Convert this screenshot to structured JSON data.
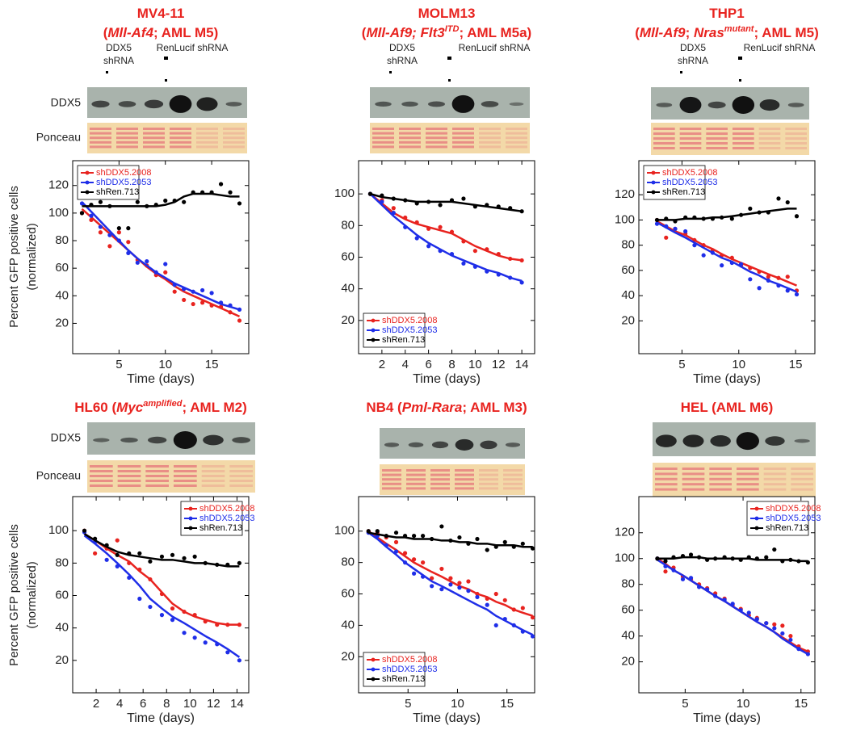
{
  "y_axis_label": [
    "Percent GFP positive cells",
    "(normalized)"
  ],
  "blot_labels": {
    "protein": "DDX5",
    "loading": "Ponceau",
    "lane_ddx5": [
      "DDX5",
      "shRNA"
    ],
    "lane_ren": "RenLucif shRNA"
  },
  "chart_data": [
    {
      "type": "scatter",
      "title": [
        [
          {
            "text": "MV4-11"
          }
        ],
        [
          {
            "text": "("
          },
          {
            "text": "Mll-Af4",
            "italic": true
          },
          {
            "text": "; AML M5)"
          }
        ]
      ],
      "xlabel": "Time (days)",
      "xlim": [
        0,
        19
      ],
      "xticks": [
        5,
        10,
        15
      ],
      "ylim": [
        -2,
        138
      ],
      "yticks": [
        20,
        40,
        60,
        80,
        100,
        120
      ],
      "legend": "upper left",
      "x": [
        1,
        2,
        3,
        4,
        5,
        6,
        7,
        8,
        9,
        10,
        11,
        12,
        13,
        14,
        15,
        16,
        17,
        18
      ],
      "series": [
        {
          "name": "shDDX5.2008",
          "color": "#e8231f",
          "values": [
            100,
            95,
            86,
            76,
            86,
            79,
            66,
            62,
            55,
            57,
            43,
            37,
            34,
            35,
            33,
            32,
            28,
            22
          ],
          "fit": [
            103,
            97,
            91,
            85,
            79,
            73,
            67,
            61,
            56,
            52,
            47,
            43,
            40,
            37,
            34,
            31,
            28,
            25
          ]
        },
        {
          "name": "shDDX5.2053",
          "color": "#1f2ee8",
          "values": [
            107,
            98,
            90,
            84,
            80,
            71,
            64,
            65,
            57,
            63,
            48,
            45,
            43,
            44,
            42,
            35,
            33,
            30
          ],
          "fit": [
            108,
            101,
            94,
            87,
            80,
            73,
            67,
            62,
            57,
            53,
            49,
            46,
            43,
            40,
            37,
            34,
            32,
            30
          ]
        },
        {
          "name": "shRen.713",
          "color": "#000000",
          "values": [
            100,
            106,
            108,
            105,
            89,
            89,
            108,
            105,
            106,
            109,
            109,
            108,
            115,
            115,
            115,
            121,
            115,
            107
          ],
          "fit": [
            105,
            105,
            105,
            105,
            105,
            105,
            105,
            105,
            105,
            106,
            108,
            112,
            114,
            114,
            114,
            113,
            112,
            112
          ]
        }
      ]
    },
    {
      "type": "scatter",
      "title": [
        [
          {
            "text": "MOLM13"
          }
        ],
        [
          {
            "text": "("
          },
          {
            "text": "Mll-Af9; Flt3",
            "italic": true
          },
          {
            "text": "ITD",
            "italic": true,
            "sup": true
          },
          {
            "text": "; AML M5a)"
          }
        ]
      ],
      "xlabel": "Time (days)",
      "xlim": [
        0,
        15.1
      ],
      "xticks": [
        2,
        4,
        6,
        8,
        10,
        12,
        14
      ],
      "ylim": [
        -1,
        121
      ],
      "yticks": [
        20,
        40,
        60,
        80,
        100
      ],
      "legend": "lower left",
      "x": [
        1,
        2,
        3,
        4,
        5,
        6,
        7,
        8,
        9,
        10,
        11,
        12,
        13,
        14
      ],
      "series": [
        {
          "name": "shDDX5.2008",
          "color": "#e8231f",
          "values": [
            100,
            96,
            91,
            85,
            82,
            78,
            79,
            76,
            70,
            64,
            65,
            62,
            59,
            58
          ],
          "fit": [
            100,
            94,
            88,
            84,
            81,
            79,
            77,
            75,
            71,
            67,
            64,
            61,
            59,
            58
          ]
        },
        {
          "name": "shDDX5.2053",
          "color": "#1f2ee8",
          "values": [
            100,
            95,
            88,
            79,
            72,
            67,
            64,
            62,
            56,
            54,
            51,
            49,
            47,
            44
          ],
          "fit": [
            100,
            93,
            86,
            80,
            74,
            69,
            65,
            61,
            58,
            55,
            52,
            50,
            47,
            45
          ]
        },
        {
          "name": "shRen.713",
          "color": "#000000",
          "values": [
            100,
            99,
            97,
            96,
            94,
            95,
            93,
            96,
            97,
            92,
            93,
            92,
            91,
            89
          ],
          "fit": [
            100,
            98,
            97,
            96,
            95,
            95,
            95,
            95,
            94,
            93,
            92,
            91,
            90,
            89
          ]
        }
      ]
    },
    {
      "type": "scatter",
      "title": [
        [
          {
            "text": "THP1"
          }
        ],
        [
          {
            "text": "("
          },
          {
            "text": "Mll-Af9",
            "italic": true
          },
          {
            "text": "; "
          },
          {
            "text": "Nras",
            "italic": true
          },
          {
            "text": "mutant",
            "italic": true,
            "sup": true
          },
          {
            "text": "; AML M5)"
          }
        ]
      ],
      "xlabel": "Time (days)",
      "xlim": [
        1.2,
        16.7
      ],
      "xticks": [
        5,
        10,
        15
      ],
      "ylim": [
        -6,
        147
      ],
      "yticks": [
        20,
        40,
        60,
        80,
        100,
        120
      ],
      "legend": "upper left",
      "x": [
        2.8,
        3.6,
        4.4,
        5.3,
        6.1,
        6.9,
        7.7,
        8.5,
        9.4,
        10.2,
        11,
        11.8,
        12.6,
        13.5,
        14.3,
        15.1
      ],
      "series": [
        {
          "name": "shDDX5.2008",
          "color": "#e8231f",
          "values": [
            100,
            86,
            93,
            89,
            84,
            80,
            76,
            72,
            70,
            64,
            62,
            59,
            55,
            54,
            55,
            44
          ],
          "fit": [
            99,
            95,
            91,
            88,
            84,
            80,
            77,
            73,
            69,
            66,
            63,
            60,
            57,
            54,
            51,
            48
          ]
        },
        {
          "name": "shDDX5.2053",
          "color": "#1f2ee8",
          "values": [
            97,
            95,
            93,
            91,
            80,
            72,
            74,
            64,
            66,
            65,
            53,
            46,
            52,
            48,
            44,
            41
          ],
          "fit": [
            98,
            94,
            90,
            86,
            82,
            78,
            74,
            70,
            67,
            63,
            59,
            56,
            52,
            49,
            46,
            43
          ]
        },
        {
          "name": "shRen.713",
          "color": "#000000",
          "values": [
            100,
            101,
            99,
            102,
            102,
            101,
            101,
            102,
            101,
            104,
            109,
            106,
            106,
            117,
            114,
            103
          ],
          "fit": [
            100,
            100,
            100,
            101,
            101,
            101,
            102,
            102,
            103,
            104,
            105,
            106,
            107,
            108,
            109,
            109
          ]
        }
      ]
    },
    {
      "type": "scatter",
      "title": [
        [
          {
            "text": "HL60 ("
          },
          {
            "text": "Myc",
            "italic": true
          },
          {
            "text": "amplified",
            "italic": true,
            "sup": true
          },
          {
            "text": "; AML M2)"
          }
        ]
      ],
      "xlabel": "Time (days)",
      "xlim": [
        0,
        15
      ],
      "xticks": [
        2,
        4,
        6,
        8,
        10,
        12,
        14
      ],
      "ylim": [
        0,
        121
      ],
      "yticks": [
        20,
        40,
        60,
        80,
        100
      ],
      "legend": "upper right",
      "x": [
        1,
        1.9,
        2.9,
        3.8,
        4.8,
        5.7,
        6.6,
        7.6,
        8.5,
        9.5,
        10.4,
        11.3,
        12.3,
        13.2,
        14.2
      ],
      "series": [
        {
          "name": "shDDX5.2008",
          "color": "#e8231f",
          "values": [
            100,
            86,
            89,
            94,
            80,
            76,
            70,
            61,
            52,
            50,
            48,
            44,
            42,
            42,
            42
          ],
          "fit": [
            98,
            94,
            89,
            85,
            81,
            75,
            70,
            62,
            55,
            50,
            47,
            45,
            43,
            42,
            42
          ]
        },
        {
          "name": "shDDX5.2053",
          "color": "#1f2ee8",
          "values": [
            99,
            93,
            82,
            78,
            71,
            58,
            53,
            48,
            45,
            37,
            34,
            31,
            30,
            25,
            20
          ],
          "fit": [
            97,
            92,
            86,
            80,
            73,
            66,
            58,
            52,
            47,
            43,
            39,
            35,
            31,
            27,
            22
          ]
        },
        {
          "name": "shRen.713",
          "color": "#000000",
          "values": [
            100,
            95,
            91,
            85,
            86,
            86,
            81,
            84,
            85,
            83,
            84,
            80,
            79,
            79,
            80
          ],
          "fit": [
            98,
            94,
            90,
            87,
            85,
            84,
            83,
            82,
            82,
            81,
            80,
            80,
            79,
            78,
            78
          ]
        }
      ]
    },
    {
      "type": "scatter",
      "title": [
        [
          {
            "text": "NB4 ("
          },
          {
            "text": "Pml-Rara",
            "italic": true
          },
          {
            "text": "; AML M3)"
          }
        ]
      ],
      "xlabel": "Time (days)",
      "xlim": [
        0,
        17.8
      ],
      "xticks": [
        5,
        10,
        15
      ],
      "ylim": [
        -3,
        122
      ],
      "yticks": [
        20,
        40,
        60,
        80,
        100
      ],
      "legend": "lower left",
      "x": [
        1,
        1.9,
        2.8,
        3.8,
        4.7,
        5.6,
        6.5,
        7.4,
        8.4,
        9.3,
        10.2,
        11.1,
        12,
        13,
        13.9,
        14.8,
        15.7,
        16.6,
        17.6
      ],
      "series": [
        {
          "name": "shDDX5.2008",
          "color": "#e8231f",
          "values": [
            100,
            99,
            96,
            93,
            86,
            82,
            80,
            70,
            76,
            70,
            67,
            68,
            60,
            57,
            60,
            56,
            50,
            51,
            45
          ],
          "fit": [
            100,
            96,
            92,
            88,
            84,
            80,
            77,
            74,
            71,
            68,
            65,
            63,
            60,
            58,
            55,
            53,
            50,
            48,
            46
          ]
        },
        {
          "name": "shDDX5.2053",
          "color": "#1f2ee8",
          "values": [
            99,
            97,
            91,
            87,
            80,
            73,
            71,
            65,
            63,
            66,
            64,
            62,
            58,
            53,
            40,
            44,
            40,
            36,
            33
          ],
          "fit": [
            99,
            95,
            90,
            85,
            80,
            76,
            72,
            68,
            65,
            62,
            59,
            56,
            53,
            50,
            46,
            43,
            40,
            37,
            34
          ]
        },
        {
          "name": "shRen.713",
          "color": "#000000",
          "values": [
            100,
            100,
            97,
            99,
            97,
            97,
            97,
            95,
            103,
            94,
            96,
            92,
            95,
            88,
            90,
            93,
            90,
            92,
            89
          ],
          "fit": [
            99,
            98,
            97,
            96,
            96,
            95,
            95,
            95,
            94,
            94,
            93,
            93,
            92,
            92,
            91,
            91,
            91,
            90,
            90
          ]
        }
      ]
    },
    {
      "type": "scatter",
      "title": [
        [
          {
            "text": "HEL (AML M6)"
          }
        ]
      ],
      "xlabel": "Time (days)",
      "xlim": [
        1,
        16.2
      ],
      "xticks": [
        5,
        10,
        15
      ],
      "ylim": [
        -4,
        148
      ],
      "yticks": [
        20,
        40,
        60,
        80,
        100,
        120
      ],
      "legend": "upper right",
      "x": [
        2.6,
        3.3,
        4,
        4.8,
        5.5,
        6.2,
        6.9,
        7.6,
        8.4,
        9.1,
        9.8,
        10.5,
        11.2,
        12,
        12.7,
        13.4,
        14.1,
        14.8,
        15.6
      ],
      "series": [
        {
          "name": "shDDX5.2008",
          "color": "#e8231f",
          "values": [
            100,
            90,
            93,
            86,
            84,
            80,
            77,
            73,
            69,
            64,
            61,
            56,
            54,
            50,
            49,
            48,
            40,
            32,
            28
          ],
          "fit": [
            100,
            96,
            91,
            87,
            83,
            79,
            75,
            71,
            67,
            63,
            59,
            55,
            51,
            47,
            43,
            39,
            35,
            31,
            28
          ]
        },
        {
          "name": "shDDX5.2053",
          "color": "#1f2ee8",
          "values": [
            100,
            94,
            91,
            84,
            85,
            78,
            76,
            71,
            68,
            65,
            60,
            58,
            53,
            50,
            46,
            42,
            37,
            30,
            26
          ],
          "fit": [
            99,
            95,
            91,
            87,
            83,
            79,
            75,
            71,
            67,
            63,
            59,
            55,
            51,
            47,
            43,
            38,
            34,
            30,
            26
          ]
        },
        {
          "name": "shRen.713",
          "color": "#000000",
          "values": [
            100,
            98,
            101,
            102,
            103,
            101,
            99,
            100,
            101,
            100,
            99,
            101,
            100,
            101,
            107,
            98,
            99,
            98,
            97
          ],
          "fit": [
            100,
            100,
            100,
            101,
            101,
            101,
            100,
            100,
            100,
            100,
            100,
            100,
            99,
            99,
            99,
            99,
            99,
            98,
            98
          ]
        }
      ]
    }
  ]
}
